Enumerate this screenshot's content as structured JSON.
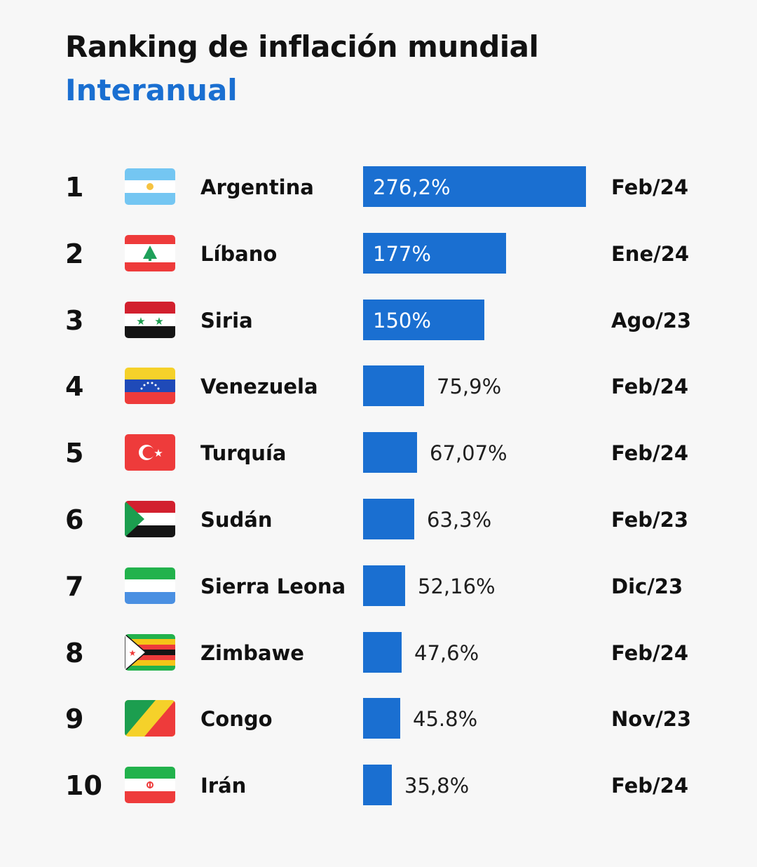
{
  "header": {
    "title": "Ranking de inflación mundial",
    "subtitle": "Interanual"
  },
  "colors": {
    "accent": "#1a6fd1",
    "bar": "#1a6fd1",
    "text": "#111111",
    "background": "#f7f7f7"
  },
  "chart_data": {
    "type": "bar",
    "orientation": "horizontal",
    "title": "Ranking de inflación mundial",
    "subtitle": "Interanual",
    "unit": "%",
    "xlim": [
      0,
      276.2
    ],
    "categories": [
      "Argentina",
      "Líbano",
      "Siria",
      "Venezuela",
      "Turquía",
      "Sudán",
      "Sierra Leona",
      "Zimbawe",
      "Congo",
      "Irán"
    ],
    "values": [
      276.2,
      177,
      150,
      75.9,
      67.07,
      63.3,
      52.16,
      47.6,
      45.8,
      35.8
    ],
    "rows": [
      {
        "rank": "1",
        "country": "Argentina",
        "flag_icon": "argentina-flag-icon",
        "value": 276.2,
        "value_label": "276,2%",
        "date": "Feb/24",
        "label_inside": true
      },
      {
        "rank": "2",
        "country": "Líbano",
        "flag_icon": "lebanon-flag-icon",
        "value": 177,
        "value_label": "177%",
        "date": "Ene/24",
        "label_inside": true
      },
      {
        "rank": "3",
        "country": "Siria",
        "flag_icon": "syria-flag-icon",
        "value": 150,
        "value_label": "150%",
        "date": "Ago/23",
        "label_inside": true
      },
      {
        "rank": "4",
        "country": "Venezuela",
        "flag_icon": "venezuela-flag-icon",
        "value": 75.9,
        "value_label": "75,9%",
        "date": "Feb/24",
        "label_inside": false
      },
      {
        "rank": "5",
        "country": "Turquía",
        "flag_icon": "turkey-flag-icon",
        "value": 67.07,
        "value_label": "67,07%",
        "date": "Feb/24",
        "label_inside": false
      },
      {
        "rank": "6",
        "country": "Sudán",
        "flag_icon": "sudan-flag-icon",
        "value": 63.3,
        "value_label": "63,3%",
        "date": "Feb/23",
        "label_inside": false
      },
      {
        "rank": "7",
        "country": "Sierra Leona",
        "flag_icon": "sierra-leone-flag-icon",
        "value": 52.16,
        "value_label": "52,16%",
        "date": "Dic/23",
        "label_inside": false
      },
      {
        "rank": "8",
        "country": "Zimbawe",
        "flag_icon": "zimbabwe-flag-icon",
        "value": 47.6,
        "value_label": "47,6%",
        "date": "Feb/24",
        "label_inside": false
      },
      {
        "rank": "9",
        "country": "Congo",
        "flag_icon": "congo-flag-icon",
        "value": 45.8,
        "value_label": "45.8%",
        "date": "Nov/23",
        "label_inside": false
      },
      {
        "rank": "10",
        "country": "Irán",
        "flag_icon": "iran-flag-icon",
        "value": 35.8,
        "value_label": "35,8%",
        "date": "Feb/24",
        "label_inside": false
      }
    ]
  }
}
